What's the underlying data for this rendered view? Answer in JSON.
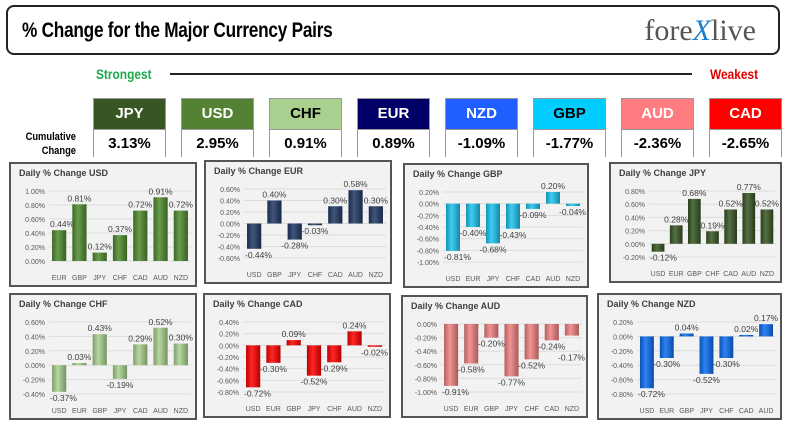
{
  "header": {
    "title": "% Change for the Major Currency Pairs",
    "logo": "forexlive",
    "strongest": "Strongest",
    "weakest": "Weakest",
    "cumulative_label_1": "Cumulative",
    "cumulative_label_2": "Change"
  },
  "cumulative": [
    {
      "currency": "JPY",
      "value": "3.13%",
      "color": "#375623",
      "text": "#ffffff"
    },
    {
      "currency": "USD",
      "value": "2.95%",
      "color": "#548235",
      "text": "#ffffff"
    },
    {
      "currency": "CHF",
      "value": "0.91%",
      "color": "#a9d08e",
      "text": "#000000"
    },
    {
      "currency": "EUR",
      "value": "0.89%",
      "color": "#000066",
      "text": "#ffffff"
    },
    {
      "currency": "NZD",
      "value": "-1.09%",
      "color": "#1f5fff",
      "text": "#ffffff"
    },
    {
      "currency": "GBP",
      "value": "-1.77%",
      "color": "#00ccff",
      "text": "#000000"
    },
    {
      "currency": "AUD",
      "value": "-2.36%",
      "color": "#ff7c80",
      "text": "#ffffff"
    },
    {
      "currency": "CAD",
      "value": "-2.65%",
      "color": "#ff0000",
      "text": "#ffffff"
    }
  ],
  "chart_data": [
    {
      "type": "bar",
      "title": "Daily % Change USD",
      "color": "#4e8a2e",
      "categories": [
        "EUR",
        "GBP",
        "JPY",
        "CHF",
        "CAD",
        "AUD",
        "NZD"
      ],
      "values": [
        0.44,
        0.81,
        0.12,
        0.37,
        0.72,
        0.91,
        0.72
      ],
      "ylim": [
        0,
        1
      ],
      "ystep": 0.2,
      "grid": true
    },
    {
      "type": "bar",
      "title": "Daily % Change EUR",
      "color": "#1f3864",
      "categories": [
        "USD",
        "GBP",
        "JPY",
        "CHF",
        "CAD",
        "AUD",
        "NZD"
      ],
      "values": [
        -0.44,
        0.4,
        -0.28,
        -0.03,
        0.3,
        0.58,
        0.3
      ],
      "ylim": [
        -0.6,
        0.6
      ],
      "ystep": 0.2,
      "grid": true
    },
    {
      "type": "bar",
      "title": "Daily % Change GBP",
      "color": "#1cc4f0",
      "categories": [
        "USD",
        "EUR",
        "JPY",
        "CHF",
        "CAD",
        "AUD",
        "NZD"
      ],
      "values": [
        -0.81,
        -0.4,
        -0.68,
        -0.43,
        -0.09,
        0.2,
        -0.04
      ],
      "ylim": [
        -1,
        0.2
      ],
      "ystep": 0.2,
      "grid": true
    },
    {
      "type": "bar",
      "title": "Daily % Change JPY",
      "color": "#375623",
      "categories": [
        "USD",
        "EUR",
        "GBP",
        "CHF",
        "CAD",
        "AUD",
        "NZD"
      ],
      "values": [
        -0.12,
        0.28,
        0.68,
        0.19,
        0.52,
        0.77,
        0.52
      ],
      "ylim": [
        -0.2,
        0.8
      ],
      "ystep": 0.2,
      "grid": true
    },
    {
      "type": "bar",
      "title": "Daily % Change CHF",
      "color": "#a9d18e",
      "categories": [
        "USD",
        "EUR",
        "GBP",
        "JPY",
        "CAD",
        "AUD",
        "NZD"
      ],
      "values": [
        -0.37,
        0.03,
        0.43,
        -0.19,
        0.29,
        0.52,
        0.3
      ],
      "ylim": [
        -0.4,
        0.6
      ],
      "ystep": 0.2,
      "grid": true
    },
    {
      "type": "bar",
      "title": "Daily % Change CAD",
      "color": "#ff0000",
      "categories": [
        "USD",
        "EUR",
        "GBP",
        "JPY",
        "CHF",
        "AUD",
        "NZD"
      ],
      "values": [
        -0.72,
        -0.3,
        0.09,
        -0.52,
        -0.29,
        0.24,
        -0.02
      ],
      "ylim": [
        -0.8,
        0.4
      ],
      "ystep": 0.2,
      "grid": true
    },
    {
      "type": "bar",
      "title": "Daily % Change AUD",
      "color": "#f08080",
      "categories": [
        "USD",
        "EUR",
        "GBP",
        "JPY",
        "CHF",
        "CAD",
        "NZD"
      ],
      "values": [
        -0.91,
        -0.58,
        -0.2,
        -0.77,
        -0.52,
        -0.24,
        -0.17
      ],
      "ylim": [
        -1,
        0
      ],
      "ystep": 0.2,
      "grid": true
    },
    {
      "type": "bar",
      "title": "Daily % Change NZD",
      "color": "#0a6cf0",
      "categories": [
        "USD",
        "EUR",
        "GBP",
        "JPY",
        "CHF",
        "CAD",
        "AUD"
      ],
      "values": [
        -0.72,
        -0.3,
        0.04,
        -0.52,
        -0.3,
        0.02,
        0.17
      ],
      "ylim": [
        -0.8,
        0.2
      ],
      "ystep": 0.2,
      "grid": true
    }
  ]
}
